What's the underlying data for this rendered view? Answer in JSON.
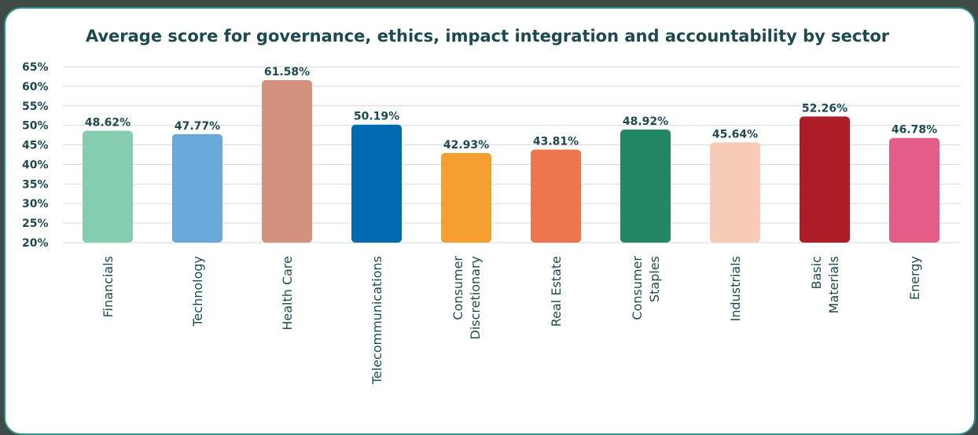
{
  "chart_data": {
    "type": "bar",
    "title": "Average score for governance, ethics, impact integration and accountability by sector",
    "categories": [
      [
        "Financials"
      ],
      [
        "Technology"
      ],
      [
        "Health Care"
      ],
      [
        "Telecommunications"
      ],
      [
        "Consumer",
        "Discretionary"
      ],
      [
        "Real Estate"
      ],
      [
        "Consumer",
        "Staples"
      ],
      [
        "Industrials"
      ],
      [
        "Basic",
        "Materials"
      ],
      [
        "Energy"
      ]
    ],
    "values": [
      48.62,
      47.77,
      61.58,
      50.19,
      42.93,
      43.81,
      48.92,
      45.64,
      52.26,
      46.78
    ],
    "value_labels": [
      "48.62%",
      "47.77%",
      "61.58%",
      "50.19%",
      "42.93%",
      "43.81%",
      "48.92%",
      "45.64%",
      "52.26%",
      "46.78%"
    ],
    "colors": [
      "#86cdb0",
      "#68a8da",
      "#d4917d",
      "#006bb0",
      "#f59f30",
      "#ee764e",
      "#238766",
      "#f7cbb5",
      "#ac1d27",
      "#e45d86"
    ],
    "ylim": [
      20,
      65
    ],
    "yticks": [
      "20%",
      "25%",
      "30%",
      "35%",
      "40%",
      "45%",
      "50%",
      "55%",
      "60%",
      "65%"
    ],
    "ytick_values": [
      20,
      25,
      30,
      35,
      40,
      45,
      50,
      55,
      60,
      65
    ],
    "grid": true,
    "legend": "none"
  }
}
